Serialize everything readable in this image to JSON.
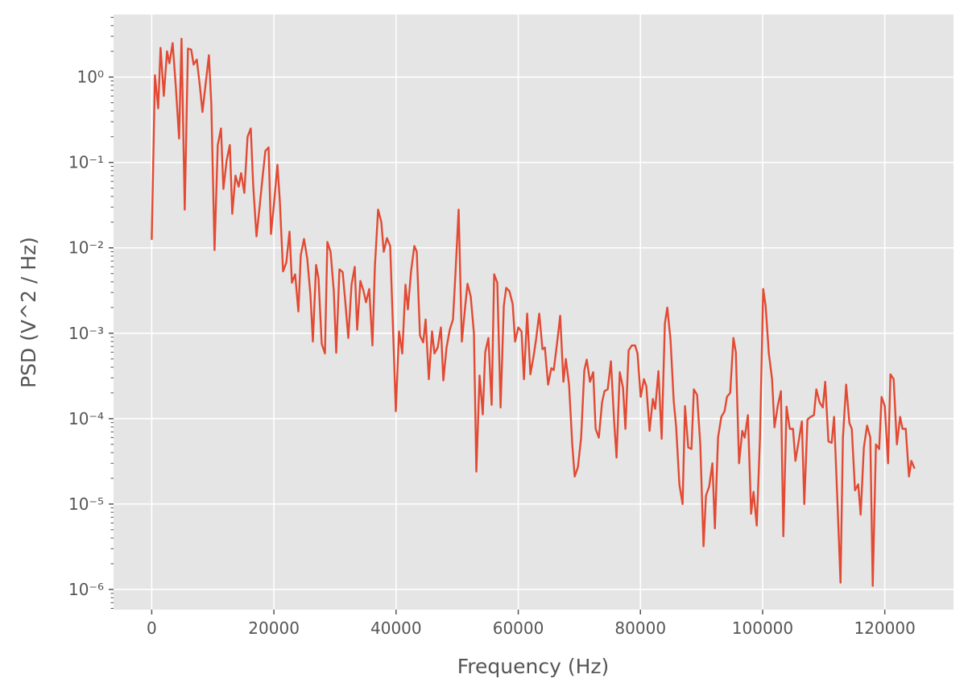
{
  "chart_data": {
    "type": "line",
    "xlabel": "Frequency (Hz)",
    "ylabel": "PSD (V^2 / Hz)",
    "log_y": true,
    "grid": true,
    "xlim": [
      -6250,
      131250
    ],
    "ylim": [
      5.8e-07,
      5.4
    ],
    "xticks": [
      0,
      20000,
      40000,
      60000,
      80000,
      100000,
      120000
    ],
    "yticks": [
      {
        "value": 1e-06,
        "label": "10⁻⁶"
      },
      {
        "value": 1e-05,
        "label": "10⁻⁵"
      },
      {
        "value": 0.0001,
        "label": "10⁻⁴"
      },
      {
        "value": 0.001,
        "label": "10⁻³"
      },
      {
        "value": 0.01,
        "label": "10⁻²"
      },
      {
        "value": 0.1,
        "label": "10⁻¹"
      },
      {
        "value": 1,
        "label": "10⁰"
      }
    ],
    "x": [
      0,
      528,
      1055,
      1450,
      1980,
      2505,
      2900,
      3430,
      3956,
      4484,
      4880,
      5407,
      5934,
      6462,
      6857,
      7385,
      7912,
      8308,
      8836,
      9363,
      9759,
      10286,
      10814,
      11341,
      11737,
      12264,
      12792,
      13187,
      13715,
      14242,
      14638,
      15165,
      15693,
      16220,
      16616,
      17144,
      17671,
      18067,
      18594,
      19122,
      19517,
      20045,
      20572,
      20968,
      21495,
      22023,
      22550,
      22946,
      23473,
      24001,
      24397,
      24924,
      25451,
      25979,
      26375,
      26902,
      27298,
      27825,
      28353,
      28748,
      29276,
      29803,
      30199,
      30727,
      31254,
      31650,
      32177,
      32705,
      33232,
      33628,
      34155,
      34683,
      35078,
      35606,
      36133,
      36529,
      37056,
      37584,
      37980,
      38507,
      39035,
      39562,
      39958,
      40485,
      41013,
      41540,
      41936,
      42463,
      42991,
      43386,
      43914,
      44441,
      44837,
      45365,
      45892,
      46288,
      46815,
      47343,
      47738,
      48266,
      48793,
      49321,
      49717,
      50244,
      50771,
      51299,
      51695,
      52222,
      52750,
      53145,
      53673,
      54200,
      54596,
      55123,
      55651,
      56047,
      56574,
      57102,
      57629,
      58025,
      58552,
      59080,
      59475,
      60003,
      60530,
      60926,
      61454,
      61981,
      62509,
      62904,
      63432,
      63959,
      64355,
      64883,
      65410,
      65806,
      66333,
      66861,
      67388,
      67784,
      68312,
      68839,
      69235,
      69762,
      70290,
      70817,
      71213,
      71740,
      72268,
      72663,
      73191,
      73718,
      74114,
      74641,
      75169,
      75696,
      76092,
      76620,
      77147,
      77543,
      78070,
      78598,
      79125,
      79521,
      80048,
      80576,
      80972,
      81499,
      82027,
      82422,
      82950,
      83477,
      84005,
      84400,
      84928,
      85456,
      85851,
      86379,
      86906,
      87302,
      87830,
      88357,
      88753,
      89280,
      89808,
      90335,
      90731,
      91258,
      91786,
      92182,
      92709,
      93237,
      93764,
      94160,
      94687,
      95215,
      95610,
      96138,
      96665,
      97061,
      97589,
      98116,
      98512,
      99039,
      99567,
      100094,
      100490,
      101018,
      101545,
      101941,
      102468,
      102996,
      103391,
      103919,
      104446,
      104974,
      105370,
      105897,
      106425,
      106820,
      107348,
      107875,
      108403,
      108799,
      109326,
      109854,
      110249,
      110777,
      111304,
      111700,
      112228,
      112755,
      113151,
      113678,
      114206,
      114601,
      115129,
      115656,
      116052,
      116579,
      117107,
      117634,
      118030,
      118557,
      119085,
      119481,
      120008,
      120536,
      120931,
      121459,
      121986,
      122514,
      122909,
      123437,
      123964,
      124360,
      124887
    ],
    "series": [
      {
        "name": "PSD",
        "color": "#e24a33",
        "values": [
          0.0124,
          1.05,
          0.43,
          2.2,
          0.6,
          2.0,
          1.45,
          2.5,
          0.75,
          0.19,
          2.8,
          0.028,
          2.15,
          2.1,
          1.4,
          1.6,
          0.75,
          0.39,
          0.84,
          1.8,
          0.48,
          0.0094,
          0.16,
          0.25,
          0.049,
          0.105,
          0.16,
          0.025,
          0.07,
          0.052,
          0.075,
          0.044,
          0.2,
          0.25,
          0.054,
          0.0136,
          0.031,
          0.06,
          0.136,
          0.15,
          0.0145,
          0.035,
          0.094,
          0.035,
          0.0053,
          0.0067,
          0.0155,
          0.0039,
          0.0049,
          0.0018,
          0.0082,
          0.0127,
          0.0075,
          0.0028,
          0.0008,
          0.0063,
          0.0044,
          0.00075,
          0.00058,
          0.0117,
          0.009,
          0.0031,
          0.00059,
          0.0056,
          0.0052,
          0.0025,
          0.00088,
          0.0037,
          0.006,
          0.0011,
          0.0041,
          0.0031,
          0.0023,
          0.0033,
          0.00072,
          0.006,
          0.028,
          0.02,
          0.009,
          0.013,
          0.0105,
          0.00084,
          0.000122,
          0.00105,
          0.00058,
          0.0037,
          0.0019,
          0.0054,
          0.0105,
          0.009,
          0.00094,
          0.00078,
          0.00145,
          0.00029,
          0.00105,
          0.00058,
          0.00068,
          0.00117,
          0.00028,
          0.00068,
          0.0011,
          0.00145,
          0.0049,
          0.028,
          0.0008,
          0.002,
          0.0038,
          0.0027,
          0.001,
          2.4e-05,
          0.00032,
          0.000112,
          0.0006,
          0.00088,
          0.000145,
          0.0049,
          0.0039,
          0.000135,
          0.0021,
          0.0034,
          0.0031,
          0.0022,
          0.0008,
          0.00117,
          0.00105,
          0.00029,
          0.0017,
          0.00033,
          0.00054,
          0.00084,
          0.0017,
          0.00065,
          0.00068,
          0.00025,
          0.00039,
          0.00037,
          0.00075,
          0.0016,
          0.00027,
          0.0005,
          0.00025,
          5e-05,
          2.1e-05,
          2.7e-05,
          6e-05,
          0.00037,
          0.00049,
          0.00027,
          0.00035,
          7.6e-05,
          6e-05,
          0.000155,
          0.00021,
          0.00022,
          0.00047,
          9.3e-05,
          3.5e-05,
          0.00035,
          0.00023,
          7.6e-05,
          0.00063,
          0.00072,
          0.00072,
          0.00058,
          0.00018,
          0.00029,
          0.00024,
          7.2e-05,
          0.00017,
          0.00013,
          0.00036,
          5.8e-05,
          0.0013,
          0.002,
          0.00084,
          0.00016,
          8e-05,
          1.7e-05,
          1e-05,
          0.00014,
          4.6e-05,
          4.4e-05,
          0.00022,
          0.00019,
          4.9e-05,
          3.2e-06,
          1.25e-05,
          1.6e-05,
          3e-05,
          5.2e-06,
          6e-05,
          0.000105,
          0.000122,
          0.00018,
          0.0002,
          0.00088,
          0.0006,
          3e-05,
          7.2e-05,
          6e-05,
          0.00011,
          7.7e-06,
          1.39e-05,
          5.6e-06,
          6e-05,
          0.0033,
          0.0021,
          0.00058,
          0.00029,
          7.9e-05,
          0.00014,
          0.00021,
          4.2e-06,
          0.000138,
          7.6e-05,
          7.6e-05,
          3.2e-05,
          5.4e-05,
          9.3e-05,
          1e-05,
          9.8e-05,
          0.000105,
          0.00011,
          0.00022,
          0.000155,
          0.000135,
          0.00027,
          5.4e-05,
          5.2e-05,
          0.000105,
          1.17e-05,
          1.2e-06,
          6e-05,
          0.00025,
          8.9e-05,
          7.6e-05,
          1.45e-05,
          1.7e-05,
          7.5e-06,
          4.6e-05,
          8.3e-05,
          6e-05,
          1.1e-06,
          5e-05,
          4.4e-05,
          0.00018,
          0.00014,
          3e-05,
          0.00033,
          0.00029,
          5e-05,
          0.000105,
          7.6e-05,
          7.6e-05,
          2.1e-05,
          3.2e-05,
          2.6e-05
        ]
      }
    ]
  }
}
